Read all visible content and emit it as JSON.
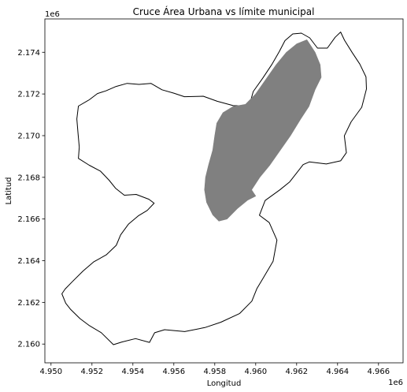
{
  "chart_data": {
    "type": "map",
    "title": "Cruce Área Urbana vs límite municipal",
    "xlabel": "Longitud",
    "ylabel": "Latitud",
    "x_offset_label": "1e6",
    "y_offset_label": "1e6",
    "xlim": [
      4.9497,
      4.9672
    ],
    "ylim": [
      2.1591,
      2.1756
    ],
    "xticks": [
      4.95,
      4.952,
      4.954,
      4.956,
      4.958,
      4.96,
      4.962,
      4.964,
      4.966
    ],
    "yticks": [
      2.16,
      2.162,
      2.164,
      2.166,
      2.168,
      2.17,
      2.172,
      2.174
    ],
    "xtick_labels": [
      "4.950",
      "4.952",
      "4.954",
      "4.956",
      "4.958",
      "4.960",
      "4.962",
      "4.964",
      "4.966"
    ],
    "ytick_labels": [
      "2.160",
      "2.162",
      "2.164",
      "2.166",
      "2.168",
      "2.170",
      "2.172",
      "2.174"
    ],
    "layers": [
      {
        "kind": "municipal-boundary",
        "fill": "none",
        "stroke": "#000000",
        "coords": [
          [
            4.95053,
            2.16241
          ],
          [
            4.95072,
            2.16196
          ],
          [
            4.95096,
            2.16166
          ],
          [
            4.95142,
            2.16122
          ],
          [
            4.95185,
            2.1609
          ],
          [
            4.95245,
            2.16055
          ],
          [
            4.95305,
            2.15997
          ],
          [
            4.95346,
            2.1601
          ],
          [
            4.95413,
            2.16026
          ],
          [
            4.95481,
            2.16008
          ],
          [
            4.95506,
            2.16054
          ],
          [
            4.95555,
            2.16069
          ],
          [
            4.95653,
            2.1606
          ],
          [
            4.95752,
            2.16079
          ],
          [
            4.9583,
            2.16105
          ],
          [
            4.95922,
            2.16147
          ],
          [
            4.95981,
            2.16206
          ],
          [
            4.96006,
            2.16267
          ],
          [
            4.96036,
            2.16316
          ],
          [
            4.96085,
            2.16397
          ],
          [
            4.96104,
            2.16499
          ],
          [
            4.96066,
            2.16583
          ],
          [
            4.96018,
            2.16618
          ],
          [
            4.96046,
            2.16689
          ],
          [
            4.96118,
            2.1674
          ],
          [
            4.96166,
            2.16778
          ],
          [
            4.96232,
            2.16861
          ],
          [
            4.96262,
            2.16874
          ],
          [
            4.96345,
            2.16864
          ],
          [
            4.96415,
            2.16879
          ],
          [
            4.96443,
            2.16918
          ],
          [
            4.96433,
            2.16999
          ],
          [
            4.96466,
            2.17066
          ],
          [
            4.96518,
            2.17136
          ],
          [
            4.96541,
            2.17224
          ],
          [
            4.96539,
            2.17282
          ],
          [
            4.96509,
            2.17343
          ],
          [
            4.96472,
            2.17398
          ],
          [
            4.96434,
            2.17458
          ],
          [
            4.96415,
            2.17497
          ],
          [
            4.96388,
            2.17472
          ],
          [
            4.9635,
            2.1742
          ],
          [
            4.96302,
            2.1742
          ],
          [
            4.96264,
            2.17469
          ],
          [
            4.96223,
            2.17492
          ],
          [
            4.96181,
            2.17488
          ],
          [
            4.96143,
            2.17456
          ],
          [
            4.96115,
            2.17403
          ],
          [
            4.9608,
            2.17343
          ],
          [
            4.96034,
            2.17275
          ],
          [
            4.95988,
            2.17212
          ],
          [
            4.95968,
            2.17142
          ],
          [
            4.9589,
            2.17144
          ],
          [
            4.95812,
            2.17165
          ],
          [
            4.95744,
            2.17189
          ],
          [
            4.95652,
            2.17187
          ],
          [
            4.956,
            2.17204
          ],
          [
            4.95542,
            2.1722
          ],
          [
            4.95488,
            2.17251
          ],
          [
            4.9543,
            2.17246
          ],
          [
            4.95372,
            2.17251
          ],
          [
            4.95318,
            2.17236
          ],
          [
            4.95268,
            2.17215
          ],
          [
            4.95227,
            2.17202
          ],
          [
            4.95187,
            2.17172
          ],
          [
            4.95134,
            2.17142
          ],
          [
            4.95126,
            2.1708
          ],
          [
            4.95132,
            2.17012
          ],
          [
            4.95138,
            2.16945
          ],
          [
            4.95134,
            2.16891
          ],
          [
            4.95187,
            2.16858
          ],
          [
            4.95241,
            2.1683
          ],
          [
            4.95284,
            2.16786
          ],
          [
            4.95315,
            2.16748
          ],
          [
            4.95358,
            2.16714
          ],
          [
            4.95416,
            2.16718
          ],
          [
            4.95478,
            2.16695
          ],
          [
            4.95504,
            2.16676
          ],
          [
            4.9547,
            2.16641
          ],
          [
            4.95426,
            2.16615
          ],
          [
            4.95378,
            2.16575
          ],
          [
            4.9534,
            2.16524
          ],
          [
            4.95319,
            2.16474
          ],
          [
            4.9527,
            2.16428
          ],
          [
            4.95208,
            2.16394
          ],
          [
            4.95157,
            2.16351
          ],
          [
            4.95104,
            2.16299
          ],
          [
            4.95069,
            2.16264
          ]
        ]
      },
      {
        "kind": "urban-area",
        "fill": "#808080",
        "stroke": "#808080",
        "coords": [
          [
            4.9625,
            2.1746
          ],
          [
            4.9629,
            2.174
          ],
          [
            4.96315,
            2.1734
          ],
          [
            4.9632,
            2.1728
          ],
          [
            4.9629,
            2.1722
          ],
          [
            4.9626,
            2.1714
          ],
          [
            4.9622,
            2.1708
          ],
          [
            4.9617,
            2.17
          ],
          [
            4.9612,
            2.1693
          ],
          [
            4.9607,
            2.1686
          ],
          [
            4.9602,
            2.168
          ],
          [
            4.9598,
            2.1674
          ],
          [
            4.96,
            2.1671
          ],
          [
            4.9596,
            2.1669
          ],
          [
            4.9591,
            2.1665
          ],
          [
            4.9586,
            2.166
          ],
          [
            4.9582,
            2.1659
          ],
          [
            4.9579,
            2.1662
          ],
          [
            4.9576,
            2.1668
          ],
          [
            4.9575,
            2.1674
          ],
          [
            4.95755,
            2.168
          ],
          [
            4.9577,
            2.1686
          ],
          [
            4.9579,
            2.1693
          ],
          [
            4.958,
            2.17
          ],
          [
            4.9581,
            2.1706
          ],
          [
            4.9584,
            2.1711
          ],
          [
            4.9589,
            2.1714
          ],
          [
            4.9595,
            2.1715
          ],
          [
            4.96,
            2.172
          ],
          [
            4.9605,
            2.1727
          ],
          [
            4.961,
            2.1734
          ],
          [
            4.9615,
            2.174
          ],
          [
            4.962,
            2.1744
          ]
        ]
      }
    ]
  }
}
